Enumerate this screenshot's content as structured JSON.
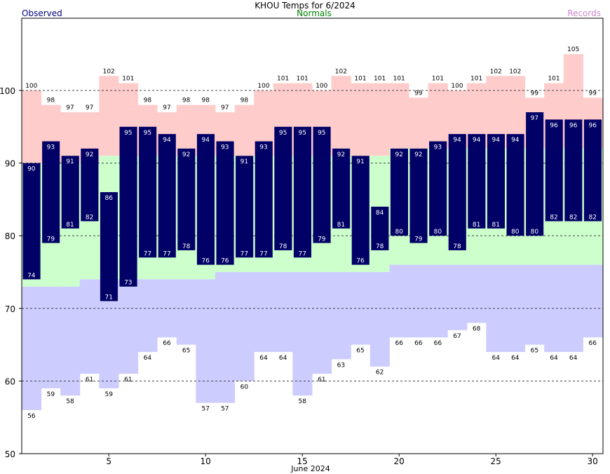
{
  "chart_data": {
    "type": "bar",
    "title": "KHOU Temps for 6/2024",
    "xlabel": "June 2024",
    "ylabel": "",
    "ylim": [
      50,
      110
    ],
    "xlim": [
      1,
      30
    ],
    "grid": true,
    "legend": {
      "observed": "Observed",
      "normals": "Normals",
      "records": "Records"
    },
    "colors": {
      "observed": "#000066",
      "normals_high": "#ffcccc",
      "normals_band": "#ccffcc",
      "record_low_band": "#ccccff",
      "observed_label": "#000080",
      "normals_label": "#008000",
      "records_label": "#cc88cc"
    },
    "x_ticks": [
      5,
      10,
      15,
      20,
      25,
      30
    ],
    "y_ticks": [
      50,
      60,
      70,
      80,
      90,
      100
    ],
    "days": [
      1,
      2,
      3,
      4,
      5,
      6,
      7,
      8,
      9,
      10,
      11,
      12,
      13,
      14,
      15,
      16,
      17,
      18,
      19,
      20,
      21,
      22,
      23,
      24,
      25,
      26,
      27,
      28,
      29,
      30
    ],
    "series": [
      {
        "name": "Observed High",
        "values": [
          90,
          93,
          91,
          92,
          86,
          95,
          95,
          94,
          92,
          94,
          93,
          91,
          93,
          95,
          95,
          95,
          92,
          91,
          84,
          92,
          92,
          93,
          94,
          94,
          94,
          94,
          97,
          96,
          96,
          96
        ]
      },
      {
        "name": "Observed Low",
        "values": [
          74,
          79,
          81,
          82,
          71,
          73,
          77,
          77,
          78,
          76,
          76,
          77,
          77,
          78,
          77,
          79,
          81,
          76,
          78,
          80,
          79,
          80,
          78,
          81,
          81,
          80,
          80,
          82,
          82,
          82
        ]
      },
      {
        "name": "Record High",
        "values": [
          100,
          98,
          97,
          97,
          102,
          101,
          98,
          97,
          98,
          98,
          97,
          98,
          100,
          101,
          101,
          100,
          102,
          101,
          101,
          101,
          99,
          101,
          100,
          101,
          102,
          102,
          99,
          101,
          105,
          99
        ]
      },
      {
        "name": "Record Low",
        "values": [
          56,
          59,
          58,
          61,
          59,
          61,
          64,
          66,
          65,
          57,
          57,
          60,
          64,
          64,
          58,
          61,
          63,
          65,
          62,
          66,
          66,
          66,
          67,
          68,
          64,
          64,
          65,
          64,
          64,
          66
        ]
      },
      {
        "name": "Normal High",
        "values": [
          90,
          90,
          90,
          90,
          91,
          91,
          91,
          91,
          91,
          91,
          91,
          91,
          91,
          91,
          91,
          91,
          91,
          91,
          91,
          92,
          92,
          92,
          92,
          92,
          92,
          92,
          92,
          92,
          92,
          92
        ]
      },
      {
        "name": "Normal Low",
        "values": [
          73,
          73,
          73,
          74,
          74,
          74,
          74,
          74,
          74,
          74,
          75,
          75,
          75,
          75,
          75,
          75,
          75,
          75,
          75,
          76,
          76,
          76,
          76,
          76,
          76,
          76,
          76,
          76,
          76,
          76
        ]
      }
    ]
  }
}
